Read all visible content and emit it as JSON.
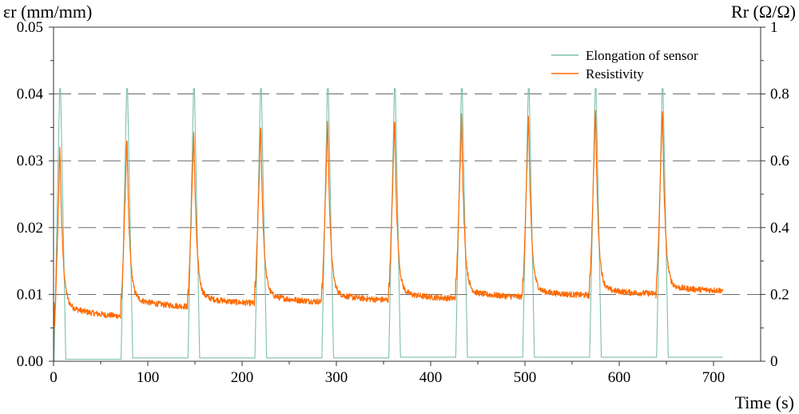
{
  "chart_data": {
    "type": "line",
    "xlabel": "Time (s)",
    "ylabel_left": "εr (mm/mm)",
    "ylabel_right": "Rr (Ω/Ω)",
    "xlim": [
      0,
      750
    ],
    "ylim_left": [
      0,
      0.05
    ],
    "ylim_right": [
      0,
      1
    ],
    "x_ticks": [
      "0",
      "100",
      "200",
      "300",
      "400",
      "500",
      "600",
      "700"
    ],
    "y_left_ticks": [
      "0.00",
      "0.01",
      "0.02",
      "0.03",
      "0.04",
      "0.05"
    ],
    "y_right_ticks": [
      "0",
      "0.2",
      "0.4",
      "0.6",
      "0.8",
      "1"
    ],
    "grid": "horizontal dashed at 0.01, 0.02, 0.03, 0.04",
    "legend_position": "top-right",
    "series": [
      {
        "name": "Elongation of sensor",
        "axis": "left",
        "color": "#7fbfa8",
        "cycle_period_s": 71,
        "cycle_start_times_s": [
          0,
          71,
          142,
          213,
          284,
          355,
          426,
          497,
          568,
          639
        ],
        "peak_strain": 0.0408,
        "baseline_strain": [
          0.0003,
          0.0005,
          0.0005,
          0.0005,
          0.0005,
          0.0006,
          0.0006,
          0.0006,
          0.0006,
          0.0006
        ],
        "end_time_s": 710
      },
      {
        "name": "Resistivity",
        "axis": "right",
        "color": "#ff6a00",
        "cycle_start_times_s": [
          0,
          71,
          142,
          213,
          284,
          355,
          426,
          497,
          568,
          639
        ],
        "peak_resistivity": [
          0.65,
          0.68,
          0.7,
          0.72,
          0.73,
          0.74,
          0.75,
          0.75,
          0.77,
          0.77
        ],
        "end_of_cycle_resistivity": [
          0.13,
          0.16,
          0.17,
          0.175,
          0.18,
          0.185,
          0.19,
          0.195,
          0.2,
          0.21
        ],
        "end_time_s": 710
      }
    ]
  }
}
